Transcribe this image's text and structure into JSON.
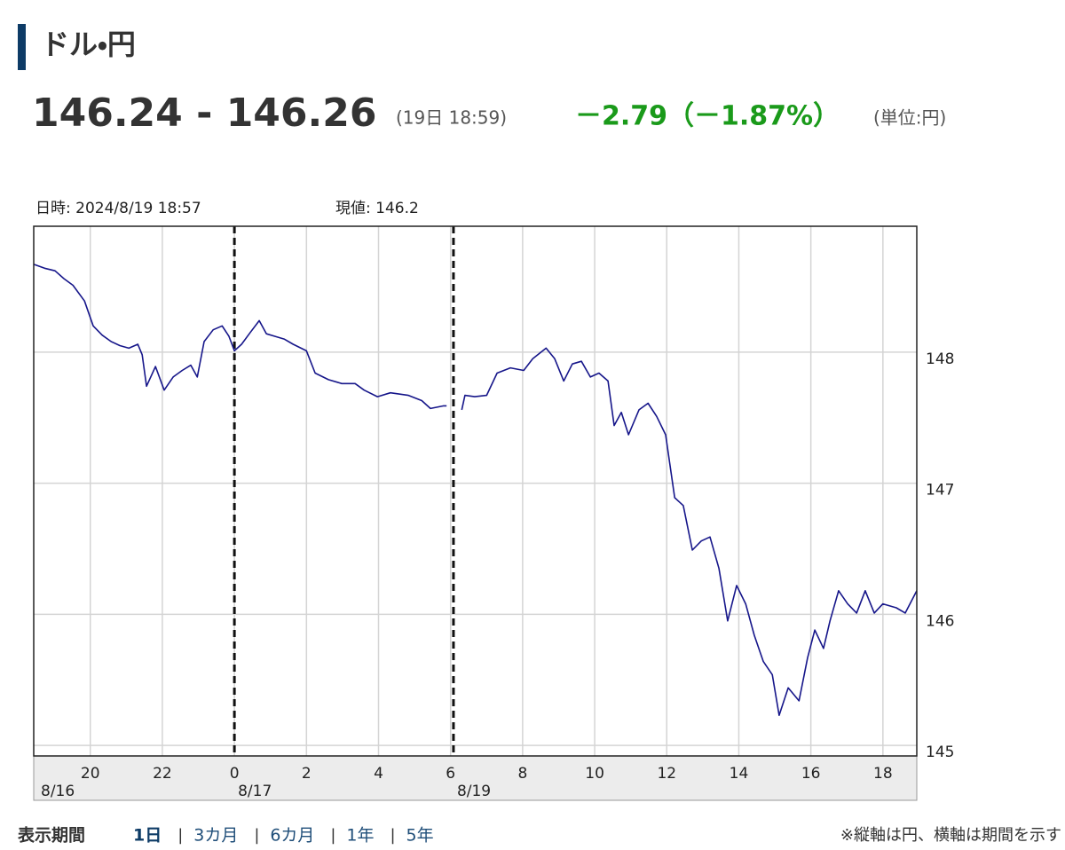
{
  "header": {
    "title": "ドル・円",
    "price": "146.24 - 146.26",
    "time": "(19日 18:59)",
    "change": "－2.79（－1.87%）",
    "unit": "(単位:円)",
    "datetime": "日時: 2024/8/19  18:57",
    "current": "現値: 146.2"
  },
  "chart_data": {
    "type": "line",
    "color": "#16168a",
    "grid": true,
    "x": [
      18.43,
      18.73,
      19.02,
      19.27,
      19.52,
      19.84,
      20.08,
      20.33,
      20.58,
      20.82,
      21.07,
      21.32,
      21.44,
      21.56,
      21.81,
      22.05,
      22.3,
      22.55,
      22.79,
      22.97,
      23.16,
      23.41,
      23.66,
      23.85,
      24.0,
      24.2,
      24.44,
      24.69,
      24.89,
      25.13,
      25.38,
      25.63,
      26.0,
      26.24,
      26.61,
      26.98,
      27.35,
      27.6,
      27.97,
      28.33,
      28.83,
      29.2,
      29.44,
      29.81,
      29.89,
      30.0,
      30.31,
      30.4,
      30.67,
      31.0,
      31.29,
      31.66,
      32.03,
      32.28,
      32.65,
      32.89,
      33.14,
      33.38,
      33.63,
      33.88,
      34.12,
      34.37,
      34.54,
      34.74,
      34.94,
      35.23,
      35.48,
      35.72,
      35.97,
      36.22,
      36.46,
      36.71,
      36.96,
      37.2,
      37.45,
      37.69,
      37.94,
      38.19,
      38.43,
      38.68,
      38.93,
      39.12,
      39.37,
      39.67,
      39.91,
      40.11,
      40.35,
      40.53,
      40.77,
      41.02,
      41.27,
      41.51,
      41.76,
      42.0,
      42.37,
      42.62,
      42.94
    ],
    "values": [
      148.67,
      148.64,
      148.62,
      148.56,
      148.51,
      148.39,
      148.2,
      148.13,
      148.08,
      148.05,
      148.03,
      148.06,
      147.98,
      147.74,
      147.89,
      147.71,
      147.81,
      147.86,
      147.9,
      147.81,
      148.08,
      148.17,
      148.2,
      148.12,
      148.01,
      148.06,
      148.15,
      148.24,
      148.14,
      148.12,
      148.1,
      148.06,
      148.01,
      147.84,
      147.79,
      147.76,
      147.76,
      147.71,
      147.66,
      147.69,
      147.67,
      147.63,
      147.57,
      147.59,
      147.59,
      null,
      147.56,
      147.67,
      147.66,
      147.67,
      147.84,
      147.88,
      147.86,
      147.95,
      148.03,
      147.95,
      147.78,
      147.91,
      147.93,
      147.81,
      147.84,
      147.78,
      147.44,
      147.54,
      147.37,
      147.56,
      147.61,
      147.51,
      147.37,
      146.89,
      146.83,
      146.49,
      146.56,
      146.59,
      146.35,
      145.95,
      146.22,
      146.08,
      145.84,
      145.64,
      145.54,
      145.23,
      145.44,
      145.34,
      145.67,
      145.88,
      145.74,
      145.95,
      146.18,
      146.08,
      146.01,
      146.18,
      146.01,
      146.08,
      146.05,
      146.01,
      146.18
    ],
    "xlim": [
      18.43,
      42.94
    ],
    "ylim": [
      144.92,
      148.96
    ],
    "xticks": [
      {
        "value": 20,
        "label": "20"
      },
      {
        "value": 22,
        "label": "22"
      },
      {
        "value": 24,
        "label": "0"
      },
      {
        "value": 26,
        "label": "2"
      },
      {
        "value": 28,
        "label": "4"
      },
      {
        "value": 30,
        "label": "6"
      },
      {
        "value": 32,
        "label": "8"
      },
      {
        "value": 34,
        "label": "10"
      },
      {
        "value": 36,
        "label": "12"
      },
      {
        "value": 38,
        "label": "14"
      },
      {
        "value": 40,
        "label": "16"
      },
      {
        "value": 42,
        "label": "18"
      }
    ],
    "yticks": [
      145,
      146,
      147,
      148
    ],
    "start_label": "8/16",
    "dividers": [
      {
        "value": 24,
        "label": "8/17"
      },
      {
        "value": 30.08,
        "label": "8/19"
      }
    ]
  },
  "footer": {
    "period_label": "表示期間",
    "periods": [
      "1日",
      "3カ月",
      "6カ月",
      "1年",
      "5年"
    ],
    "note": "※縦軸は円、横軸は期間を示す"
  }
}
